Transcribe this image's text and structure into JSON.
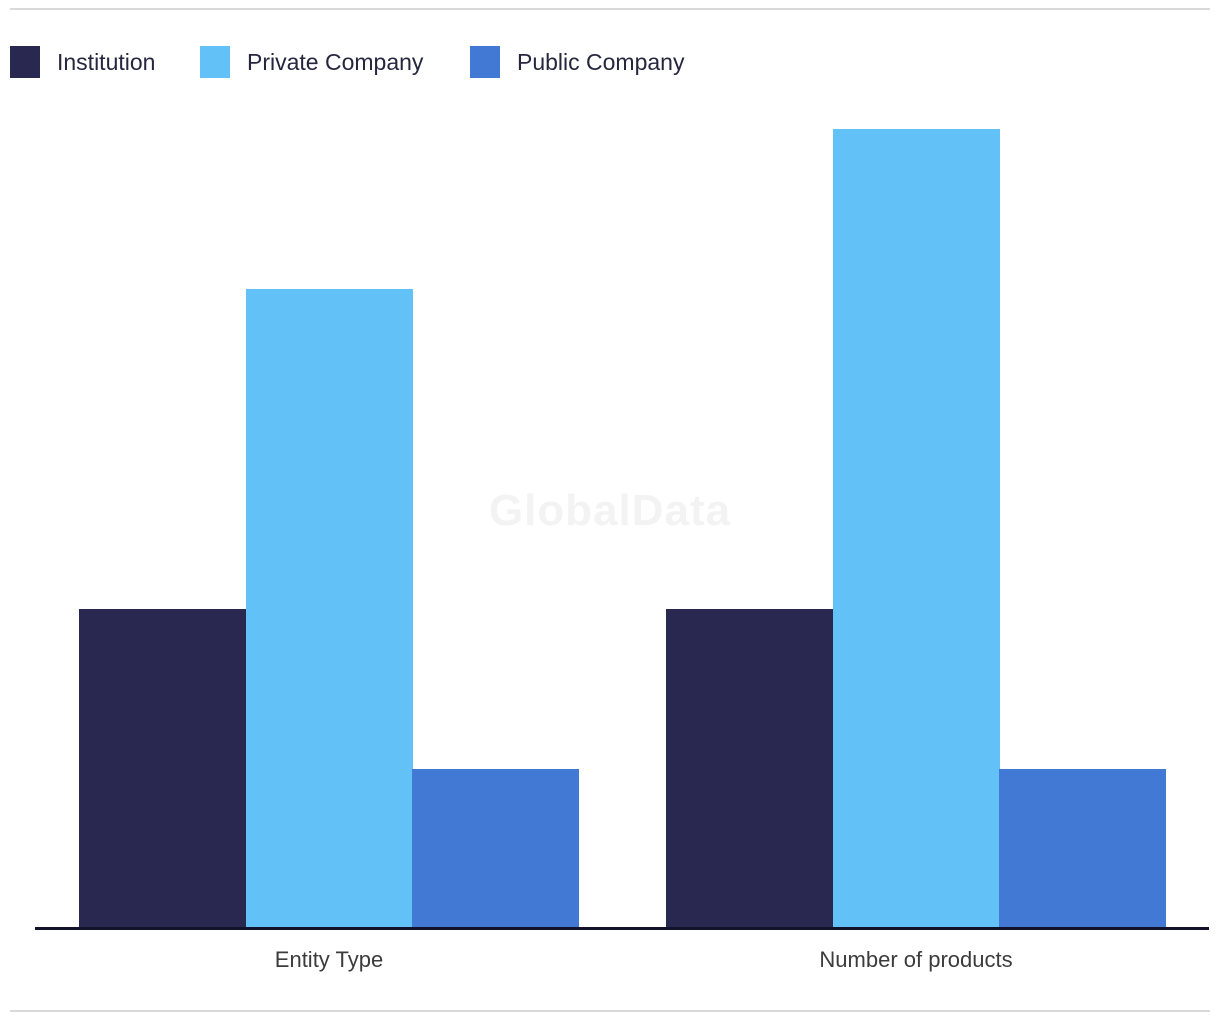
{
  "watermark": "GlobalData",
  "chart_data": {
    "type": "bar",
    "categories": [
      "Entity Type",
      "Number of products"
    ],
    "series": [
      {
        "name": "Institution",
        "color": "#282850",
        "values": [
          2,
          2
        ]
      },
      {
        "name": "Private Company",
        "color": "#62c2f8",
        "values": [
          4,
          5
        ]
      },
      {
        "name": "Public Company",
        "color": "#4179d4",
        "values": [
          1,
          1
        ]
      }
    ],
    "title": "",
    "xlabel": "",
    "ylabel": "",
    "ylim": [
      0,
      5.15
    ],
    "grid": false,
    "y_axis_visible": false,
    "legend_position": "top-left",
    "colors": {
      "axis_line": "#12122b",
      "axis_label_text": "#3c3c3c",
      "legend_text": "#26263e",
      "watermark_text": "#f3f3f3",
      "divider": "#d9d9d9",
      "background": "#ffffff"
    }
  }
}
